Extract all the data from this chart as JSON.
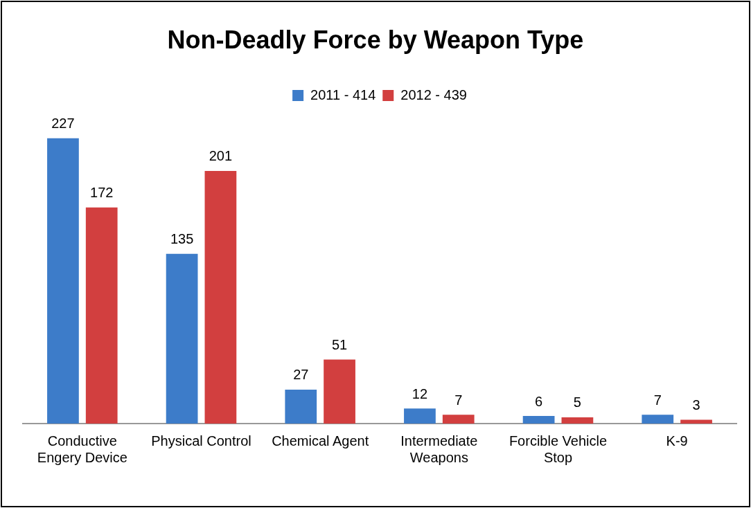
{
  "chart_data": {
    "type": "bar",
    "title": "Non-Deadly Force by Weapon Type",
    "categories": [
      "Conductive Engery Device",
      "Physical Control",
      "Chemical Agent",
      "Intermediate Weapons",
      "Forcible Vehicle Stop",
      "K-9"
    ],
    "series": [
      {
        "name": "2011 - 414",
        "color": "#3d7cc9",
        "values": [
          227,
          135,
          27,
          12,
          6,
          7
        ]
      },
      {
        "name": "2012 - 439",
        "color": "#d23f3f",
        "values": [
          172,
          201,
          51,
          7,
          5,
          3
        ]
      }
    ],
    "data_labels": true,
    "legend": "top",
    "grid": false
  }
}
